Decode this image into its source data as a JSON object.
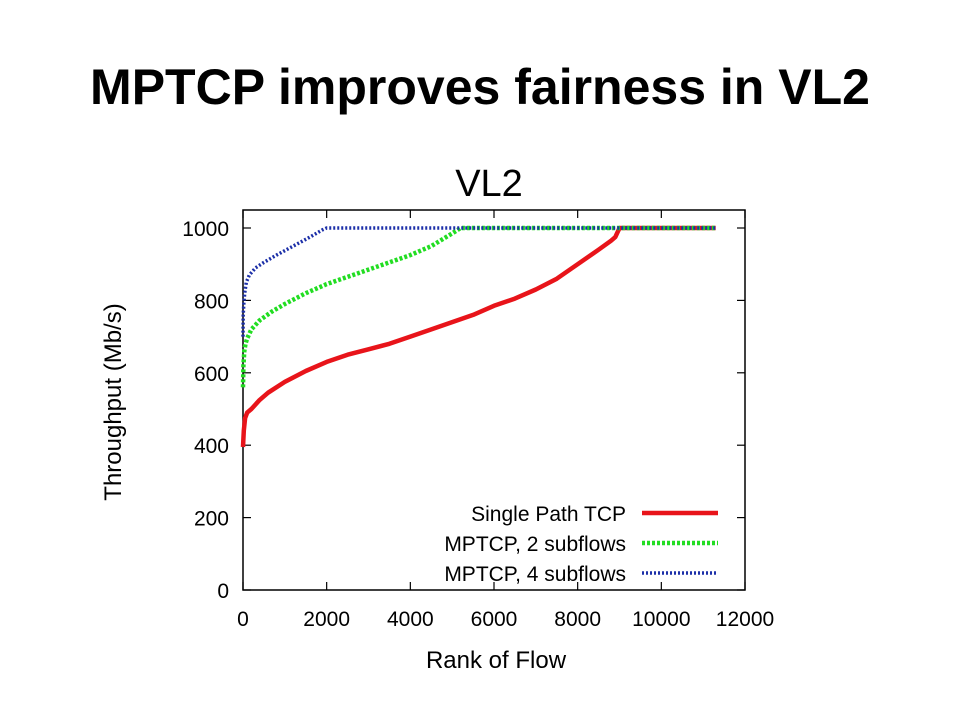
{
  "slide": {
    "title": "MPTCP improves fairness in VL2"
  },
  "chart_data": {
    "type": "line",
    "title": "VL2",
    "xlabel": "Rank of Flow",
    "ylabel": "Throughput (Mb/s)",
    "xlim": [
      0,
      12000
    ],
    "ylim": [
      0,
      1000
    ],
    "xticks": [
      0,
      2000,
      4000,
      6000,
      8000,
      10000,
      12000
    ],
    "yticks": [
      0,
      200,
      400,
      600,
      800,
      1000
    ],
    "grid": false,
    "legend_position": "bottom-right",
    "series": [
      {
        "name": "Single Path TCP",
        "color": "#e8141a",
        "dash": "solid",
        "x": [
          0,
          20,
          50,
          100,
          200,
          400,
          600,
          1000,
          1500,
          2000,
          2500,
          3000,
          3500,
          4000,
          4500,
          5000,
          5500,
          6000,
          6500,
          7000,
          7500,
          8000,
          8500,
          8800,
          8900,
          9000,
          10000,
          11300
        ],
        "y": [
          395,
          440,
          475,
          490,
          500,
          525,
          545,
          575,
          605,
          630,
          650,
          665,
          680,
          700,
          720,
          740,
          760,
          785,
          805,
          830,
          860,
          900,
          940,
          965,
          975,
          1000,
          1000,
          1000
        ]
      },
      {
        "name": "MPTCP, 2 subflows",
        "color": "#22dd22",
        "dash": "dotted",
        "x": [
          0,
          10,
          30,
          60,
          100,
          200,
          400,
          700,
          1000,
          1500,
          2000,
          2500,
          3000,
          3500,
          4000,
          4500,
          5000,
          5200,
          6000,
          8000,
          10000,
          11300
        ],
        "y": [
          560,
          620,
          660,
          680,
          695,
          720,
          745,
          770,
          790,
          820,
          845,
          865,
          885,
          905,
          925,
          950,
          985,
          1000,
          1000,
          1000,
          1000,
          1000
        ]
      },
      {
        "name": "MPTCP, 4 subflows",
        "color": "#1c2fa8",
        "dash": "dotted",
        "x": [
          0,
          5,
          20,
          40,
          80,
          150,
          300,
          500,
          800,
          1200,
          1600,
          1900,
          2000,
          4000,
          8000,
          11300
        ],
        "y": [
          700,
          760,
          790,
          820,
          850,
          870,
          890,
          905,
          925,
          950,
          975,
          995,
          1000,
          1000,
          1000,
          1000
        ]
      }
    ]
  }
}
